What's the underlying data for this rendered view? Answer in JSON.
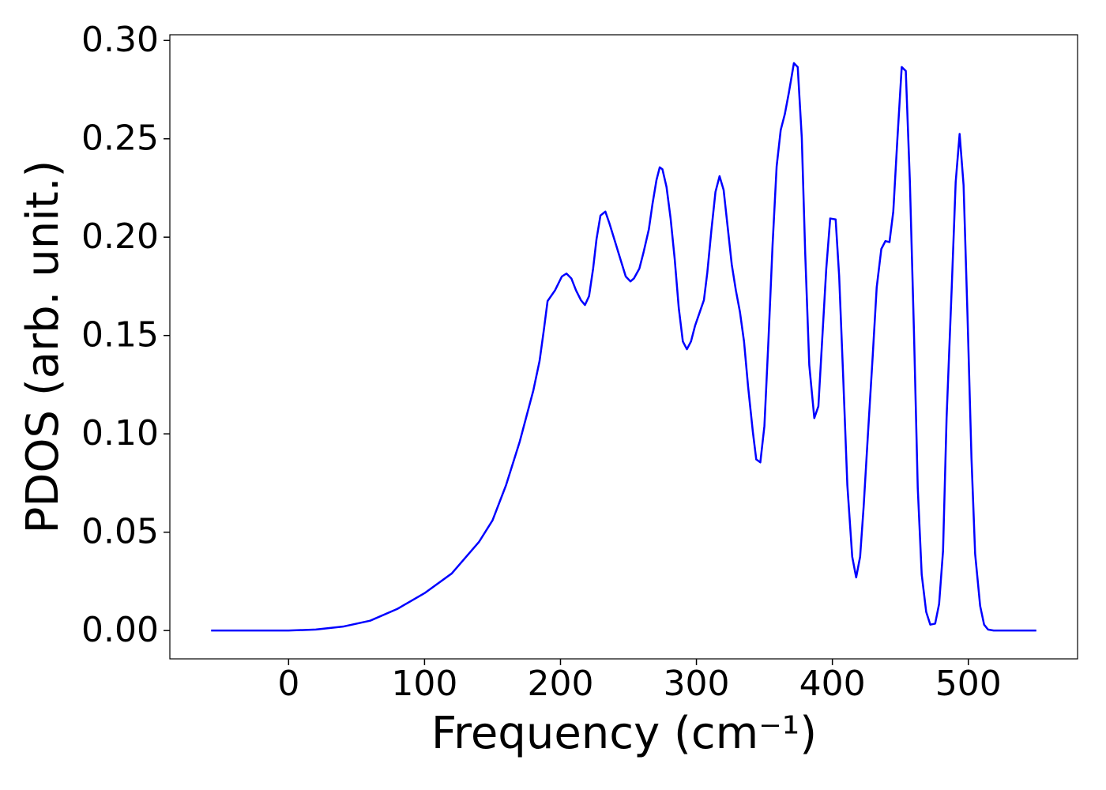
{
  "chart_data": {
    "type": "line",
    "xlabel": "Frequency (cm⁻¹)",
    "ylabel": "PDOS (arb. unit.)",
    "xlim": [
      -87.35,
      580.35
    ],
    "ylim": [
      -0.0144,
      0.3029
    ],
    "xticks": [
      0,
      100,
      200,
      300,
      400,
      500
    ],
    "yticks": [
      {
        "value": 0,
        "label": "0.00"
      },
      {
        "value": 0.05,
        "label": "0.05"
      },
      {
        "value": 0.1,
        "label": "0.10"
      },
      {
        "value": 0.15,
        "label": "0.15"
      },
      {
        "value": 0.2,
        "label": "0.20"
      },
      {
        "value": 0.25,
        "label": "0.25"
      },
      {
        "value": 0.3,
        "label": "0.30"
      }
    ],
    "grid": false,
    "series": [
      {
        "color": "#0000ff",
        "x": [
          -57,
          0,
          20,
          40,
          60,
          80,
          100,
          120,
          140,
          150,
          160,
          170,
          180,
          184.6,
          187.6,
          190.5,
          196,
          201,
          204.4,
          208,
          211.4,
          215,
          218,
          221,
          224,
          226.5,
          229.4,
          233,
          236,
          240,
          244,
          248,
          251.5,
          254,
          258,
          261,
          265,
          267.7,
          270.6,
          273,
          275,
          278,
          281,
          284,
          287,
          290,
          293,
          296,
          299,
          302,
          305.5,
          308,
          311,
          314,
          317,
          320,
          323,
          326,
          329,
          332,
          335,
          338,
          341.5,
          344,
          347,
          350,
          353,
          356,
          359,
          362,
          365,
          368,
          371.7,
          374.5,
          377.5,
          380,
          383,
          386.7,
          389.7,
          392.6,
          395.5,
          398.4,
          402.4,
          405,
          408,
          411,
          414.6,
          417.5,
          420.4,
          423,
          426,
          429.7,
          432.6,
          436,
          439,
          442,
          444.8,
          447.7,
          451,
          454,
          457,
          460,
          462.8,
          465.7,
          469,
          472,
          475.6,
          478.5,
          481.4,
          484,
          487.8,
          490.7,
          493.6,
          496.5,
          499.4,
          502.3,
          505,
          508.7,
          511.6,
          514.5,
          518.6,
          550
        ],
        "values": [
          0,
          0,
          0.0005,
          0.002,
          0.005,
          0.011,
          0.019,
          0.029,
          0.045,
          0.056,
          0.074,
          0.096,
          0.122,
          0.137,
          0.152,
          0.1675,
          0.173,
          0.18,
          0.1815,
          0.179,
          0.173,
          0.168,
          0.1655,
          0.17,
          0.184,
          0.199,
          0.211,
          0.213,
          0.207,
          0.198,
          0.189,
          0.18,
          0.1775,
          0.179,
          0.184,
          0.192,
          0.204,
          0.217,
          0.229,
          0.2355,
          0.2345,
          0.2255,
          0.2095,
          0.189,
          0.164,
          0.147,
          0.143,
          0.147,
          0.155,
          0.161,
          0.168,
          0.182,
          0.2035,
          0.223,
          0.231,
          0.224,
          0.205,
          0.186,
          0.173,
          0.162,
          0.147,
          0.124,
          0.101,
          0.087,
          0.0855,
          0.104,
          0.148,
          0.196,
          0.236,
          0.2545,
          0.2625,
          0.2735,
          0.2885,
          0.2865,
          0.2505,
          0.192,
          0.135,
          0.108,
          0.114,
          0.149,
          0.184,
          0.2095,
          0.209,
          0.18,
          0.128,
          0.074,
          0.0375,
          0.027,
          0.0375,
          0.063,
          0.098,
          0.14,
          0.1745,
          0.194,
          0.198,
          0.1975,
          0.213,
          0.2485,
          0.2865,
          0.2845,
          0.2285,
          0.152,
          0.0725,
          0.0285,
          0.0095,
          0.003,
          0.0035,
          0.0135,
          0.0405,
          0.108,
          0.1745,
          0.228,
          0.2525,
          0.2265,
          0.16,
          0.088,
          0.039,
          0.0125,
          0.003,
          0.0005,
          0,
          0
        ]
      }
    ]
  }
}
